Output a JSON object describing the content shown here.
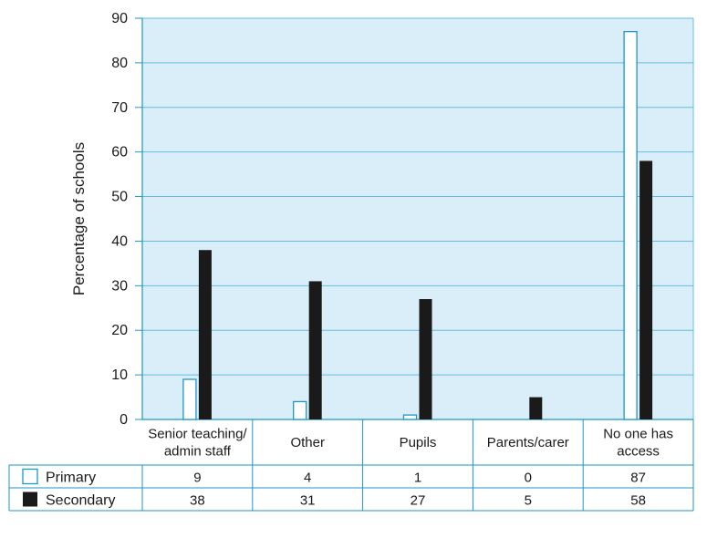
{
  "chart_data": {
    "type": "bar",
    "title": "",
    "xlabel": "",
    "ylabel": "Percentage of schools",
    "ylim": [
      0,
      90
    ],
    "yticks": [
      0,
      10,
      20,
      30,
      40,
      50,
      60,
      70,
      80,
      90
    ],
    "grid": true,
    "categories": [
      [
        "Senior teaching/",
        "admin staff"
      ],
      [
        "Other"
      ],
      [
        "Pupils"
      ],
      [
        "Parents/carer"
      ],
      [
        "No one has",
        "access"
      ]
    ],
    "series": [
      {
        "name": "Primary",
        "values": [
          9,
          4,
          1,
          0,
          87
        ],
        "fill": "#ffffff",
        "stroke": "#1b97c9"
      },
      {
        "name": "Secondary",
        "values": [
          38,
          31,
          27,
          5,
          58
        ],
        "fill": "#1a1a1a",
        "stroke": "#1a1a1a"
      }
    ],
    "data_table": {
      "rows": [
        {
          "series": "Primary",
          "cells": [
            "9",
            "4",
            "1",
            "0",
            "87"
          ]
        },
        {
          "series": "Secondary",
          "cells": [
            "38",
            "31",
            "27",
            "5",
            "58"
          ]
        }
      ]
    },
    "colors": {
      "plot_background": "#d9eef8",
      "gridline": "#63bde2",
      "axis": "#1b97c9",
      "table_border": "#1b97c9"
    }
  }
}
